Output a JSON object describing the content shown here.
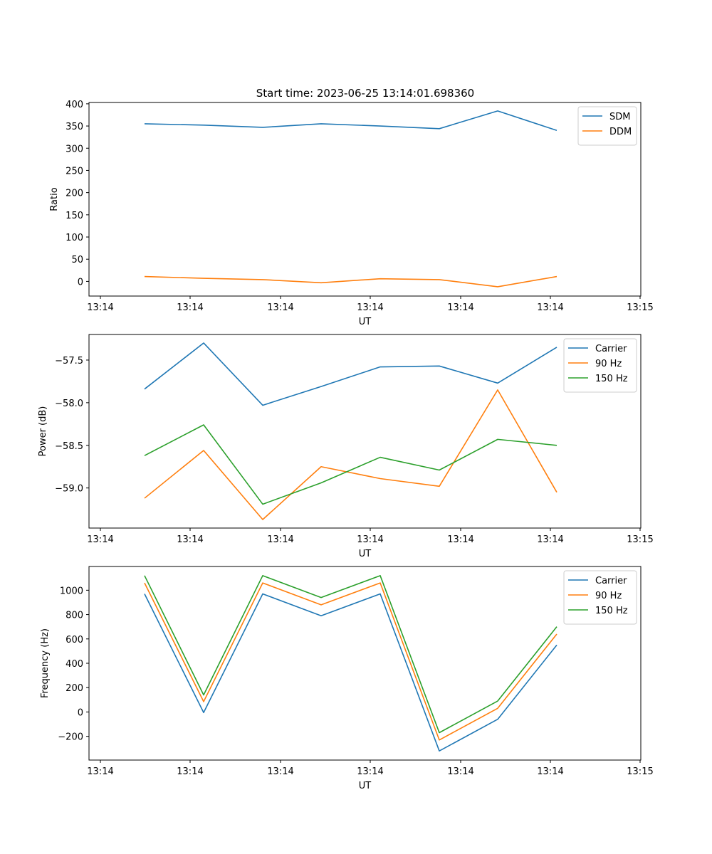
{
  "figure": {
    "title": "Start time: 2023-06-25 13:14:01.698360"
  },
  "colors": {
    "blue": "#1f77b4",
    "orange": "#ff7f0e",
    "green": "#2ca02c"
  },
  "chart_data": [
    {
      "type": "line",
      "xlabel": "UT",
      "ylabel": "Ratio",
      "x_tick_labels": [
        "13:14",
        "13:14",
        "13:14",
        "13:14",
        "13:14",
        "13:14",
        "13:14",
        "13:15"
      ],
      "yticks": [
        0,
        50,
        100,
        150,
        200,
        250,
        300,
        350,
        400
      ],
      "y_tick_labels": [
        "0",
        "50",
        "100",
        "150",
        "200",
        "250",
        "300",
        "350",
        "400"
      ],
      "ylim": [
        -33,
        403
      ],
      "legend_position": "upper-right",
      "series": [
        {
          "name": "SDM",
          "color": "#1f77b4",
          "values": [
            355,
            352,
            347,
            355,
            350,
            344,
            384,
            340
          ]
        },
        {
          "name": "DDM",
          "color": "#ff7f0e",
          "values": [
            11,
            7,
            4,
            -3,
            6,
            4,
            -12,
            11
          ]
        }
      ]
    },
    {
      "type": "line",
      "xlabel": "UT",
      "ylabel": "Power (dB)",
      "x_tick_labels": [
        "13:14",
        "13:14",
        "13:14",
        "13:14",
        "13:14",
        "13:14",
        "13:14",
        "13:15"
      ],
      "yticks": [
        -59.0,
        -58.5,
        -58.0,
        -57.5
      ],
      "y_tick_labels": [
        "−59.0",
        "−58.5",
        "−58.0",
        "−57.5"
      ],
      "ylim": [
        -59.47,
        -57.2
      ],
      "legend_position": "upper-right",
      "series": [
        {
          "name": "Carrier",
          "color": "#1f77b4",
          "values": [
            -57.84,
            -57.3,
            -58.03,
            -57.81,
            -57.58,
            -57.57,
            -57.77,
            -57.35
          ]
        },
        {
          "name": "90 Hz",
          "color": "#ff7f0e",
          "values": [
            -59.12,
            -58.56,
            -59.37,
            -58.75,
            -58.89,
            -58.98,
            -57.85,
            -59.05
          ]
        },
        {
          "name": "150 Hz",
          "color": "#2ca02c",
          "values": [
            -58.62,
            -58.26,
            -59.19,
            -58.94,
            -58.64,
            -58.79,
            -58.43,
            -58.5
          ]
        }
      ]
    },
    {
      "type": "line",
      "xlabel": "UT",
      "ylabel": "Frequency (Hz)",
      "x_tick_labels": [
        "13:14",
        "13:14",
        "13:14",
        "13:14",
        "13:14",
        "13:14",
        "13:14",
        "13:15"
      ],
      "yticks": [
        -200,
        0,
        200,
        400,
        600,
        800,
        1000
      ],
      "y_tick_labels": [
        "−200",
        "0",
        "200",
        "400",
        "600",
        "800",
        "1000"
      ],
      "ylim": [
        -395,
        1195
      ],
      "legend_position": "upper-right",
      "series": [
        {
          "name": "Carrier",
          "color": "#1f77b4",
          "values": [
            970,
            -5,
            970,
            790,
            970,
            -320,
            -60,
            550
          ]
        },
        {
          "name": "90 Hz",
          "color": "#ff7f0e",
          "values": [
            1060,
            85,
            1060,
            880,
            1060,
            -230,
            30,
            640
          ]
        },
        {
          "name": "150 Hz",
          "color": "#2ca02c",
          "values": [
            1120,
            140,
            1120,
            940,
            1120,
            -170,
            90,
            700
          ]
        }
      ]
    }
  ]
}
